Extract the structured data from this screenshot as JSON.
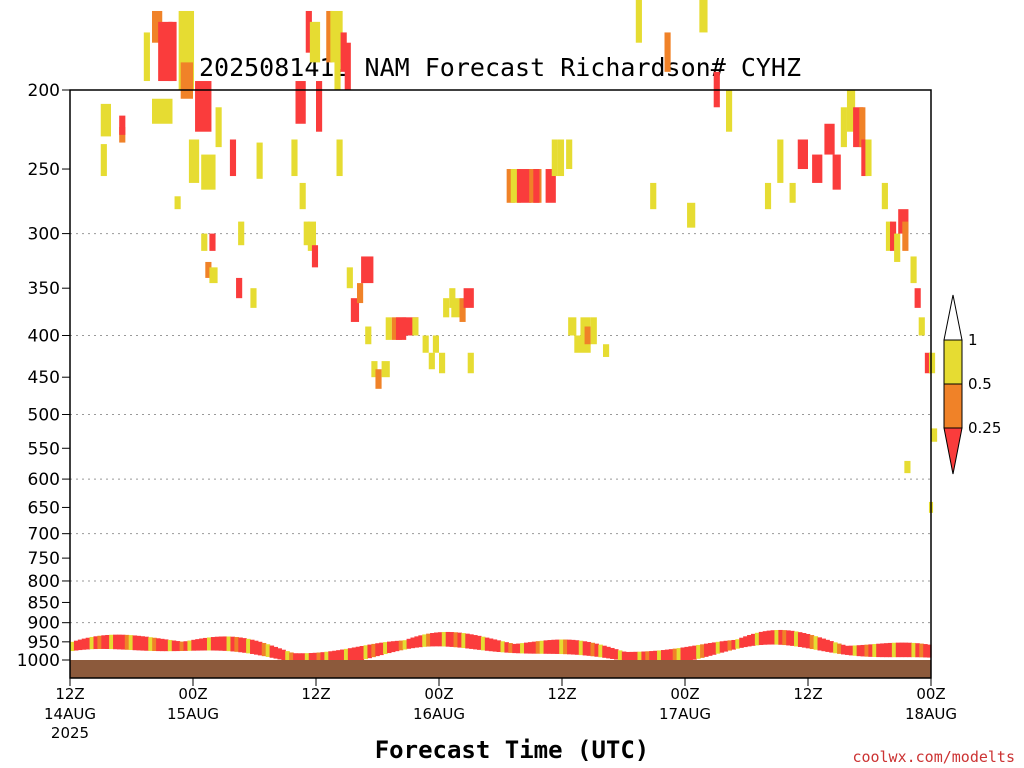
{
  "chart_data": {
    "type": "heatmap",
    "title": "2025081412 NAM Forecast Richardson# CYHZ",
    "xlabel": "Forecast Time (UTC)",
    "ylabel": "",
    "y_axis": {
      "scale": "log",
      "reversed": true,
      "ylim": [
        1000,
        200
      ],
      "ticks": [
        200,
        250,
        300,
        350,
        400,
        450,
        500,
        550,
        600,
        650,
        700,
        750,
        800,
        850,
        900,
        950,
        1000
      ],
      "gridlines": [
        300,
        400,
        500,
        600,
        700,
        800,
        900
      ],
      "grid": "dotted"
    },
    "x_axis": {
      "xlim_hours": [
        0,
        84
      ],
      "ticks": [
        {
          "hour": 0,
          "label": "12Z",
          "sub": "14AUG",
          "sub2": "2025"
        },
        {
          "hour": 12,
          "label": "00Z",
          "sub": "15AUG",
          "sub2": ""
        },
        {
          "hour": 24,
          "label": "12Z",
          "sub": "",
          "sub2": ""
        },
        {
          "hour": 36,
          "label": "00Z",
          "sub": "16AUG",
          "sub2": ""
        },
        {
          "hour": 48,
          "label": "12Z",
          "sub": "",
          "sub2": ""
        },
        {
          "hour": 60,
          "label": "00Z",
          "sub": "17AUG",
          "sub2": ""
        },
        {
          "hour": 72,
          "label": "12Z",
          "sub": "",
          "sub2": ""
        },
        {
          "hour": 84,
          "label": "00Z",
          "sub": "18AUG",
          "sub2": ""
        }
      ]
    },
    "legend": {
      "placement": "right",
      "levels": [
        {
          "label": "1",
          "value": 1.0
        },
        {
          "label": "0.5",
          "value": 0.5
        },
        {
          "label": "0.25",
          "value": 0.25
        }
      ],
      "colors": {
        "above_1": "#ffffff",
        "half_to_1": "#e6dc32",
        "quarter_to_half": "#f08228",
        "below_quarter": "#fa3c3c"
      }
    },
    "surface_color": "#8c5a3c",
    "cells": [
      [
        3.0,
        208,
        1.0,
        20,
        "y"
      ],
      [
        3.0,
        233,
        0.6,
        22,
        "y"
      ],
      [
        4.8,
        222,
        0.6,
        10,
        "o"
      ],
      [
        4.8,
        215,
        0.6,
        12,
        "r"
      ],
      [
        7.2,
        170,
        0.6,
        25,
        "y"
      ],
      [
        8.0,
        160,
        1.0,
        15,
        "o"
      ],
      [
        8.6,
        165,
        1.4,
        30,
        "r"
      ],
      [
        8.0,
        205,
        2.0,
        15,
        "y"
      ],
      [
        9.6,
        165,
        0.8,
        30,
        "r"
      ],
      [
        10.6,
        160,
        1.5,
        40,
        "y"
      ],
      [
        10.8,
        185,
        1.2,
        20,
        "o"
      ],
      [
        10.2,
        270,
        0.6,
        10,
        "y"
      ],
      [
        11.6,
        230,
        1.0,
        30,
        "y"
      ],
      [
        12.2,
        195,
        1.6,
        30,
        "r"
      ],
      [
        12.8,
        240,
        1.4,
        25,
        "y"
      ],
      [
        12.8,
        300,
        0.6,
        15,
        "y"
      ],
      [
        13.6,
        300,
        0.6,
        15,
        "r"
      ],
      [
        13.2,
        325,
        0.6,
        15,
        "o"
      ],
      [
        13.6,
        330,
        0.8,
        15,
        "y"
      ],
      [
        14.2,
        210,
        0.6,
        25,
        "y"
      ],
      [
        15.6,
        230,
        0.6,
        25,
        "r"
      ],
      [
        16.4,
        290,
        0.6,
        20,
        "y"
      ],
      [
        16.2,
        340,
        0.6,
        20,
        "r"
      ],
      [
        18.2,
        232,
        0.6,
        25,
        "y"
      ],
      [
        16.6,
        100,
        1.2,
        30,
        "y"
      ],
      [
        17.0,
        130,
        0.6,
        20,
        "y"
      ],
      [
        17.6,
        350,
        0.6,
        20,
        "y"
      ],
      [
        21.6,
        230,
        0.6,
        25,
        "y"
      ],
      [
        22.0,
        195,
        1.0,
        25,
        "r"
      ],
      [
        22.4,
        260,
        0.6,
        20,
        "y"
      ],
      [
        22.8,
        290,
        0.6,
        20,
        "y"
      ],
      [
        23.0,
        160,
        0.6,
        20,
        "r"
      ],
      [
        23.4,
        165,
        1.0,
        20,
        "y"
      ],
      [
        24.0,
        195,
        0.6,
        30,
        "r"
      ],
      [
        25.0,
        160,
        0.6,
        25,
        "o"
      ],
      [
        25.4,
        160,
        1.2,
        25,
        "y"
      ],
      [
        25.8,
        180,
        0.6,
        20,
        "y"
      ],
      [
        26.0,
        230,
        0.6,
        25,
        "y"
      ],
      [
        23.2,
        290,
        0.8,
        25,
        "y"
      ],
      [
        23.6,
        310,
        0.6,
        20,
        "r"
      ],
      [
        26.4,
        170,
        0.6,
        20,
        "r"
      ],
      [
        26.8,
        175,
        0.6,
        25,
        "r"
      ],
      [
        27.0,
        330,
        0.6,
        20,
        "y"
      ],
      [
        27.4,
        360,
        0.8,
        25,
        "r"
      ],
      [
        28.0,
        345,
        0.6,
        20,
        "o"
      ],
      [
        28.4,
        320,
        1.2,
        25,
        "r"
      ],
      [
        28.8,
        390,
        0.6,
        20,
        "y"
      ],
      [
        29.4,
        430,
        0.6,
        20,
        "y"
      ],
      [
        29.8,
        440,
        0.6,
        25,
        "o"
      ],
      [
        30.4,
        430,
        0.8,
        20,
        "y"
      ],
      [
        30.8,
        380,
        0.6,
        25,
        "y"
      ],
      [
        31.4,
        380,
        1.0,
        25,
        "o"
      ],
      [
        31.8,
        380,
        1.0,
        25,
        "r"
      ],
      [
        32.4,
        380,
        1.6,
        20,
        "r"
      ],
      [
        33.4,
        380,
        0.6,
        20,
        "y"
      ],
      [
        34.4,
        400,
        0.6,
        20,
        "y"
      ],
      [
        35.0,
        420,
        0.6,
        20,
        "y"
      ],
      [
        35.4,
        400,
        0.6,
        20,
        "y"
      ],
      [
        36.0,
        420,
        0.6,
        25,
        "y"
      ],
      [
        36.4,
        360,
        0.6,
        20,
        "y"
      ],
      [
        37.0,
        350,
        0.6,
        20,
        "y"
      ],
      [
        37.2,
        360,
        0.8,
        20,
        "y"
      ],
      [
        38.0,
        360,
        0.6,
        25,
        "o"
      ],
      [
        38.4,
        350,
        1.0,
        20,
        "r"
      ],
      [
        38.8,
        420,
        0.6,
        25,
        "y"
      ],
      [
        39.4,
        130,
        0.6,
        20,
        "y"
      ],
      [
        40.2,
        130,
        0.6,
        20,
        "y"
      ],
      [
        42.6,
        250,
        0.8,
        25,
        "o"
      ],
      [
        43.0,
        250,
        1.0,
        25,
        "y"
      ],
      [
        43.6,
        250,
        1.4,
        25,
        "r"
      ],
      [
        44.8,
        250,
        1.2,
        25,
        "o"
      ],
      [
        45.2,
        250,
        0.6,
        25,
        "r"
      ],
      [
        46.4,
        250,
        1.0,
        25,
        "r"
      ],
      [
        47.0,
        230,
        0.6,
        25,
        "y"
      ],
      [
        47.6,
        230,
        0.6,
        25,
        "y"
      ],
      [
        48.4,
        230,
        0.6,
        20,
        "y"
      ],
      [
        48.6,
        380,
        0.8,
        20,
        "y"
      ],
      [
        49.2,
        400,
        1.6,
        20,
        "y"
      ],
      [
        49.8,
        380,
        1.0,
        30,
        "y"
      ],
      [
        50.2,
        390,
        0.6,
        20,
        "o"
      ],
      [
        50.8,
        380,
        0.6,
        30,
        "y"
      ],
      [
        52.0,
        410,
        0.6,
        15,
        "y"
      ],
      [
        55.2,
        150,
        0.6,
        25,
        "y"
      ],
      [
        56.6,
        260,
        0.6,
        20,
        "y"
      ],
      [
        58.0,
        170,
        0.6,
        20,
        "o"
      ],
      [
        60.2,
        275,
        0.8,
        20,
        "y"
      ],
      [
        61.4,
        150,
        0.8,
        20,
        "y"
      ],
      [
        62.8,
        190,
        0.6,
        20,
        "r"
      ],
      [
        64.0,
        200,
        0.6,
        25,
        "y"
      ],
      [
        67.8,
        260,
        0.6,
        20,
        "y"
      ],
      [
        69.0,
        230,
        0.6,
        30,
        "y"
      ],
      [
        70.2,
        260,
        0.6,
        15,
        "y"
      ],
      [
        71.0,
        230,
        1.0,
        20,
        "r"
      ],
      [
        72.4,
        240,
        1.0,
        20,
        "r"
      ],
      [
        73.6,
        220,
        1.0,
        20,
        "r"
      ],
      [
        74.4,
        240,
        0.8,
        25,
        "r"
      ],
      [
        75.2,
        210,
        0.6,
        25,
        "y"
      ],
      [
        75.8,
        200,
        0.8,
        25,
        "y"
      ],
      [
        76.4,
        210,
        1.0,
        25,
        "r"
      ],
      [
        77.0,
        210,
        0.6,
        25,
        "o"
      ],
      [
        77.2,
        230,
        0.6,
        25,
        "r"
      ],
      [
        77.6,
        230,
        0.6,
        25,
        "y"
      ],
      [
        79.2,
        260,
        0.6,
        20,
        "y"
      ],
      [
        79.6,
        290,
        0.6,
        25,
        "y"
      ],
      [
        80.0,
        290,
        0.6,
        25,
        "r"
      ],
      [
        80.4,
        300,
        0.6,
        25,
        "y"
      ],
      [
        80.8,
        280,
        1.0,
        20,
        "r"
      ],
      [
        81.2,
        290,
        0.6,
        25,
        "o"
      ],
      [
        82.0,
        320,
        0.6,
        25,
        "y"
      ],
      [
        82.4,
        350,
        0.6,
        20,
        "r"
      ],
      [
        82.8,
        380,
        0.6,
        20,
        "y"
      ],
      [
        83.4,
        420,
        0.6,
        25,
        "r"
      ],
      [
        83.8,
        420,
        0.6,
        25,
        "y"
      ],
      [
        83.8,
        640,
        0.4,
        20,
        "y"
      ],
      [
        81.4,
        570,
        0.6,
        20,
        "y"
      ],
      [
        84.0,
        520,
        0.6,
        20,
        "y"
      ]
    ]
  },
  "credit": "coolwx.com/modelts"
}
